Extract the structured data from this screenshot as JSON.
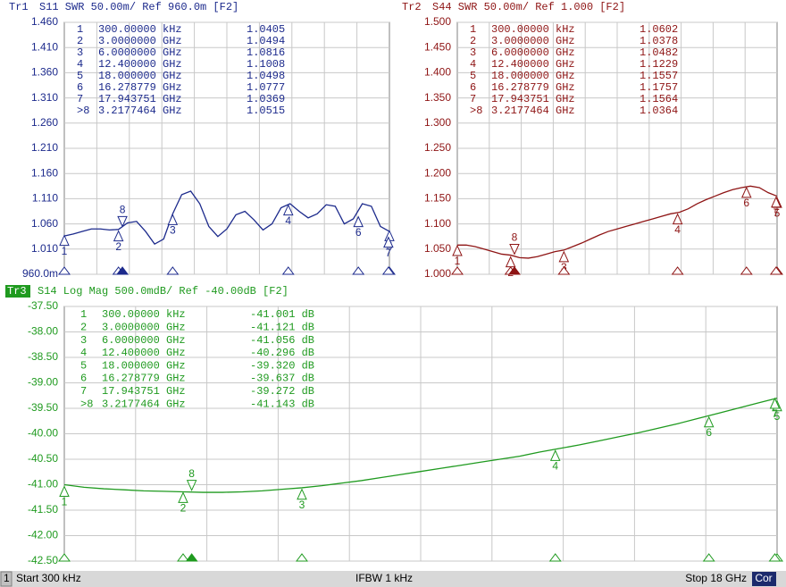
{
  "chart_data": [
    {
      "type": "line",
      "trace": "Tr1",
      "header": "S11  SWR 50.00m/ Ref 960.0m [F2]",
      "color": "#1c2a8c",
      "xlim": [
        0.0003,
        18
      ],
      "ylim": [
        0.96,
        1.46
      ],
      "yticks": [
        {
          "value": 1.46,
          "label": "1.460"
        },
        {
          "value": 1.41,
          "label": "1.410"
        },
        {
          "value": 1.36,
          "label": "1.360"
        },
        {
          "value": 1.31,
          "label": "1.310"
        },
        {
          "value": 1.26,
          "label": "1.260"
        },
        {
          "value": 1.21,
          "label": "1.210"
        },
        {
          "value": 1.16,
          "label": "1.160"
        },
        {
          "value": 1.11,
          "label": "1.110"
        },
        {
          "value": 1.06,
          "label": "1.060"
        },
        {
          "value": 1.01,
          "label": "1.010"
        },
        {
          "value": 0.96,
          "label": "960.0m"
        }
      ],
      "grid": true,
      "x": [
        0.0003,
        0.5,
        1,
        1.5,
        2,
        2.5,
        3,
        3.5,
        4,
        4.5,
        5,
        5.5,
        6,
        6.5,
        7,
        7.5,
        8,
        8.5,
        9,
        9.5,
        10,
        10.5,
        11,
        11.5,
        12,
        12.5,
        13,
        13.5,
        14,
        14.5,
        15,
        15.5,
        16,
        16.5,
        17,
        17.5,
        18
      ],
      "values": [
        1.036,
        1.04,
        1.045,
        1.05,
        1.05,
        1.048,
        1.049,
        1.062,
        1.065,
        1.045,
        1.02,
        1.03,
        1.08,
        1.118,
        1.125,
        1.1,
        1.055,
        1.035,
        1.05,
        1.078,
        1.085,
        1.068,
        1.048,
        1.06,
        1.092,
        1.1,
        1.085,
        1.072,
        1.08,
        1.098,
        1.095,
        1.06,
        1.07,
        1.1,
        1.095,
        1.055,
        1.045
      ],
      "markers": [
        {
          "name": "1",
          "stimulus": "300.00000 kHz",
          "x": 0.0003,
          "value": 1.0405
        },
        {
          "name": "2",
          "stimulus": "3.0000000 GHz",
          "x": 3,
          "value": 1.0494
        },
        {
          "name": "3",
          "stimulus": "6.0000000 GHz",
          "x": 6,
          "value": 1.0816
        },
        {
          "name": "4",
          "stimulus": "12.400000 GHz",
          "x": 12.4,
          "value": 1.1008
        },
        {
          "name": "5",
          "stimulus": "18.000000 GHz",
          "x": 18,
          "value": 1.0498
        },
        {
          "name": "6",
          "stimulus": "16.278779 GHz",
          "x": 16.278779,
          "value": 1.0777
        },
        {
          "name": "7",
          "stimulus": "17.943751 GHz",
          "x": 17.943751,
          "value": 1.0369
        },
        {
          "name": "8",
          "row_label": ">8",
          "stimulus": "3.2177464 GHz",
          "x": 3.2177464,
          "value": 1.0515
        }
      ]
    },
    {
      "type": "line",
      "trace": "Tr2",
      "header": "S44  SWR 50.00m/ Ref 1.000 [F2]",
      "color": "#8e1414",
      "xlim": [
        0.0003,
        18
      ],
      "ylim": [
        1,
        1.5
      ],
      "yticks": [
        {
          "value": 1.5,
          "label": "1.500"
        },
        {
          "value": 1.45,
          "label": "1.450"
        },
        {
          "value": 1.4,
          "label": "1.400"
        },
        {
          "value": 1.35,
          "label": "1.350"
        },
        {
          "value": 1.3,
          "label": "1.300"
        },
        {
          "value": 1.25,
          "label": "1.250"
        },
        {
          "value": 1.2,
          "label": "1.200"
        },
        {
          "value": 1.15,
          "label": "1.150"
        },
        {
          "value": 1.1,
          "label": "1.100"
        },
        {
          "value": 1.05,
          "label": "1.050"
        },
        {
          "value": 1,
          "label": "1.000"
        }
      ],
      "grid": true,
      "x": [
        0.0003,
        0.5,
        1,
        1.5,
        2,
        2.5,
        3,
        3.5,
        4,
        4.5,
        5,
        5.5,
        6,
        6.5,
        7,
        7.5,
        8,
        8.5,
        9,
        9.5,
        10,
        10.5,
        11,
        11.5,
        12,
        12.5,
        13,
        13.5,
        14,
        14.5,
        15,
        15.5,
        16,
        16.5,
        17,
        17.5,
        18
      ],
      "values": [
        1.058,
        1.058,
        1.055,
        1.05,
        1.045,
        1.04,
        1.038,
        1.033,
        1.032,
        1.035,
        1.04,
        1.045,
        1.048,
        1.055,
        1.062,
        1.07,
        1.078,
        1.085,
        1.09,
        1.095,
        1.1,
        1.105,
        1.11,
        1.115,
        1.12,
        1.123,
        1.13,
        1.14,
        1.148,
        1.155,
        1.162,
        1.168,
        1.172,
        1.175,
        1.172,
        1.162,
        1.155
      ],
      "markers": [
        {
          "name": "1",
          "stimulus": "300.00000 kHz",
          "x": 0.0003,
          "value": 1.0602
        },
        {
          "name": "2",
          "stimulus": "3.0000000 GHz",
          "x": 3,
          "value": 1.0378
        },
        {
          "name": "3",
          "stimulus": "6.0000000 GHz",
          "x": 6,
          "value": 1.0482
        },
        {
          "name": "4",
          "stimulus": "12.400000 GHz",
          "x": 12.4,
          "value": 1.1229
        },
        {
          "name": "5",
          "stimulus": "18.000000 GHz",
          "x": 18,
          "value": 1.1557
        },
        {
          "name": "6",
          "stimulus": "16.278779 GHz",
          "x": 16.278779,
          "value": 1.1757
        },
        {
          "name": "7",
          "stimulus": "17.943751 GHz",
          "x": 17.943751,
          "value": 1.1564
        },
        {
          "name": "8",
          "row_label": ">8",
          "stimulus": "3.2177464 GHz",
          "x": 3.2177464,
          "value": 1.0364
        }
      ]
    },
    {
      "type": "line",
      "trace": "Tr3",
      "header": "S14  Log Mag 500.0mdB/ Ref -40.00dB [F2]",
      "color": "#1f9a1f",
      "xlim": [
        0.0003,
        18
      ],
      "ylim": [
        -42.5,
        -37.5
      ],
      "yticks": [
        {
          "value": -37.5,
          "label": "-37.50"
        },
        {
          "value": -38,
          "label": "-38.00"
        },
        {
          "value": -38.5,
          "label": "-38.50"
        },
        {
          "value": -39,
          "label": "-39.00"
        },
        {
          "value": -39.5,
          "label": "-39.50"
        },
        {
          "value": -40,
          "label": "-40.00"
        },
        {
          "value": -40.5,
          "label": "-40.50"
        },
        {
          "value": -41,
          "label": "-41.00"
        },
        {
          "value": -41.5,
          "label": "-41.50"
        },
        {
          "value": -42,
          "label": "-42.00"
        },
        {
          "value": -42.5,
          "label": "-42.50"
        }
      ],
      "grid": true,
      "x": [
        0.0003,
        0.5,
        1,
        1.5,
        2,
        2.5,
        3,
        3.5,
        4,
        4.5,
        5,
        5.5,
        6,
        6.5,
        7,
        7.5,
        8,
        8.5,
        9,
        9.5,
        10,
        10.5,
        11,
        11.5,
        12,
        12.5,
        13,
        13.5,
        14,
        14.5,
        15,
        15.5,
        16,
        16.5,
        17,
        17.5,
        18
      ],
      "values": [
        -41.0,
        -41.05,
        -41.08,
        -41.1,
        -41.12,
        -41.13,
        -41.14,
        -41.15,
        -41.15,
        -41.14,
        -41.12,
        -41.09,
        -41.06,
        -41.02,
        -40.97,
        -40.92,
        -40.86,
        -40.8,
        -40.74,
        -40.68,
        -40.62,
        -40.56,
        -40.5,
        -40.44,
        -40.36,
        -40.29,
        -40.22,
        -40.14,
        -40.06,
        -39.98,
        -39.89,
        -39.8,
        -39.7,
        -39.6,
        -39.5,
        -39.4,
        -39.3
      ],
      "markers": [
        {
          "name": "1",
          "stimulus": "300.00000 kHz",
          "x": 0.0003,
          "value": -41.001,
          "value_label": "-41.001 dB"
        },
        {
          "name": "2",
          "stimulus": "3.0000000 GHz",
          "x": 3,
          "value": -41.121,
          "value_label": "-41.121 dB"
        },
        {
          "name": "3",
          "stimulus": "6.0000000 GHz",
          "x": 6,
          "value": -41.056,
          "value_label": "-41.056 dB"
        },
        {
          "name": "4",
          "stimulus": "12.400000 GHz",
          "x": 12.4,
          "value": -40.296,
          "value_label": "-40.296 dB"
        },
        {
          "name": "5",
          "stimulus": "18.000000 GHz",
          "x": 18,
          "value": -39.32,
          "value_label": "-39.320 dB"
        },
        {
          "name": "6",
          "stimulus": "16.278779 GHz",
          "x": 16.278779,
          "value": -39.637,
          "value_label": "-39.637 dB"
        },
        {
          "name": "7",
          "stimulus": "17.943751 GHz",
          "x": 17.943751,
          "value": -39.272,
          "value_label": "-39.272 dB"
        },
        {
          "name": "8",
          "row_label": ">8",
          "stimulus": "3.2177464 GHz",
          "x": 3.2177464,
          "value": -41.143,
          "value_label": "-41.143 dB"
        }
      ]
    }
  ],
  "status_bar": {
    "channel": "1",
    "start": "Start 300 kHz",
    "ifbw": "IFBW 1 kHz",
    "stop": "Stop 18 GHz",
    "correction": "Cor"
  }
}
